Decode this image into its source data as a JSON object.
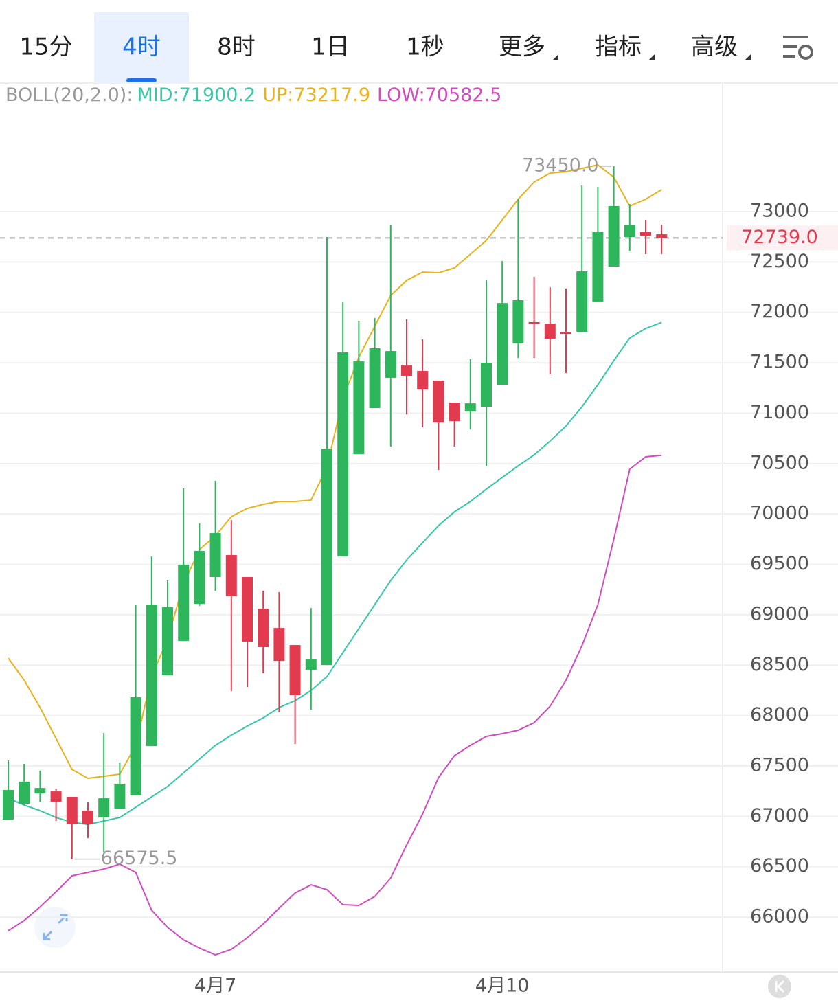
{
  "tabs": [
    "15分",
    "4时",
    "8时",
    "1日",
    "1秒",
    "更多",
    "指标",
    "高级"
  ],
  "active_tab": 1,
  "chart_data": {
    "type": "candlestick",
    "indicator_label": "BOLL(20,2.0):",
    "categories": [
      null,
      null,
      null,
      null,
      null,
      null,
      null,
      null,
      null,
      null,
      null,
      null,
      null,
      "4月7",
      null,
      null,
      null,
      null,
      null,
      null,
      null,
      null,
      null,
      null,
      null,
      null,
      null,
      null,
      null,
      null,
      null,
      "4月10",
      null,
      null,
      null,
      null,
      null,
      null,
      null,
      null,
      null,
      null
    ],
    "open": [
      66968,
      67125,
      67227,
      67247,
      67193,
      67056,
      66988,
      67077,
      67206,
      67697,
      68399,
      68740,
      69108,
      69374,
      69592,
      69374,
      69060,
      68869,
      68699,
      68454,
      68501,
      69578,
      70594,
      71051,
      71351,
      71473,
      71419,
      71323,
      71105,
      71017,
      71064,
      71282,
      71691,
      71903,
      71889,
      71807,
      71807,
      72107,
      72455,
      72748,
      72796,
      72775
    ],
    "high": [
      67554,
      67520,
      67452,
      67274,
      67193,
      67138,
      67827,
      67534,
      69101,
      69578,
      69340,
      70253,
      69906,
      70328,
      69940,
      69374,
      69238,
      69224,
      68699,
      69067,
      72748,
      72100,
      71916,
      71944,
      72864,
      71930,
      71732,
      71323,
      71105,
      71535,
      72318,
      72509,
      73123,
      72352,
      72250,
      72237,
      73259,
      73245,
      73450,
      73075,
      72918,
      72870
    ],
    "low": [
      66968,
      67111,
      67145,
      66954,
      66575.5,
      66784,
      66648,
      67077,
      67206,
      67697,
      68399,
      68740,
      69088,
      69238,
      68242,
      68283,
      68420,
      68038,
      67718,
      68058,
      68501,
      69578,
      70594,
      71051,
      70669,
      70989,
      70860,
      70437,
      70669,
      70839,
      70478,
      71282,
      71548,
      71548,
      71385,
      71398,
      71807,
      72107,
      72455,
      72611,
      72577,
      72577
    ],
    "close": [
      67261,
      67343,
      67281,
      67145,
      66920,
      66920,
      67179,
      67322,
      68181,
      69101,
      69074,
      69497,
      69633,
      69810,
      69183,
      68733,
      68679,
      68542,
      68201,
      68556,
      70648,
      71603,
      71514,
      71644,
      71616,
      71371,
      71235,
      70907,
      70921,
      71098,
      71500,
      72093,
      72121,
      71882,
      71739,
      71794,
      72407,
      72796,
      73055,
      72864,
      72761,
      72739
    ],
    "up_color": "#2eb65c",
    "down_color": "#e23b50",
    "series": [
      {
        "name": "MID:71900.2",
        "color": "#37c7a6",
        "values": [
          67179,
          67111,
          67056,
          66988,
          66941,
          66920,
          66954,
          66988,
          67090,
          67193,
          67295,
          67431,
          67568,
          67704,
          67806,
          67895,
          67977,
          68079,
          68147,
          68249,
          68386,
          68624,
          68863,
          69101,
          69340,
          69544,
          69715,
          69885,
          70021,
          70124,
          70246,
          70362,
          70478,
          70587,
          70723,
          70873,
          71064,
          71282,
          71521,
          71746,
          71841,
          71900.2
        ]
      },
      {
        "name": "UP:73217.9",
        "color": "#e8b21e",
        "values": [
          68570,
          68351,
          68079,
          67772,
          67465,
          67377,
          67397,
          67418,
          67704,
          68386,
          68760,
          69306,
          69647,
          69783,
          69974,
          70055,
          70096,
          70124,
          70124,
          70137,
          70464,
          71146,
          71555,
          71862,
          72168,
          72318,
          72400,
          72393,
          72441,
          72577,
          72714,
          72918,
          73123,
          73293,
          73382,
          73395,
          73429,
          73463,
          73341,
          73055,
          73123,
          73217.9
        ]
      },
      {
        "name": "LOW:70582.5",
        "color": "#d04cbf",
        "values": [
          65864,
          65966,
          66102,
          66252,
          66409,
          66443,
          66477,
          66525,
          66443,
          66068,
          65898,
          65775,
          65693,
          65625,
          65680,
          65795,
          65932,
          66089,
          66239,
          66320,
          66273,
          66123,
          66116,
          66205,
          66388,
          66716,
          67022,
          67384,
          67602,
          67704,
          67793,
          67820,
          67854,
          67929,
          68092,
          68351,
          68692,
          69101,
          69749,
          70444,
          70567,
          70582.5
        ]
      }
    ],
    "high_label": "73450.0",
    "low_label": "66575.5",
    "last_price": {
      "value": 72739,
      "label": "72739.0"
    },
    "ylim": [
      65455,
      74268
    ],
    "yticks": [
      66000,
      66500,
      67000,
      67500,
      68000,
      68500,
      69000,
      69500,
      70000,
      70500,
      71000,
      71500,
      72000,
      72500,
      73000
    ],
    "grid": true
  }
}
